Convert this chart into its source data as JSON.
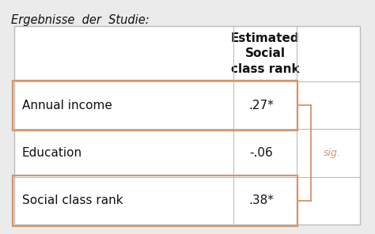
{
  "title": "Ergebnisse  der  Studie:",
  "bg_color": "#ebebeb",
  "table_bg": "#ffffff",
  "col_header": "Estimated\nSocial\nclass rank",
  "rows": [
    {
      "label": "Annual income",
      "value": ".27*",
      "highlighted": true
    },
    {
      "label": "Education",
      "value": "-.06",
      "highlighted": false
    },
    {
      "label": "Social class rank",
      "value": ".38*",
      "highlighted": true
    }
  ],
  "sig_text": "sig.",
  "sig_color": "#d4956a",
  "highlight_border": "#d4956a",
  "table_border": "#bbbbbb",
  "text_color": "#111111",
  "title_fontsize": 10.5,
  "header_fontsize": 11,
  "row_fontsize": 11,
  "annotation_fontsize": 9
}
